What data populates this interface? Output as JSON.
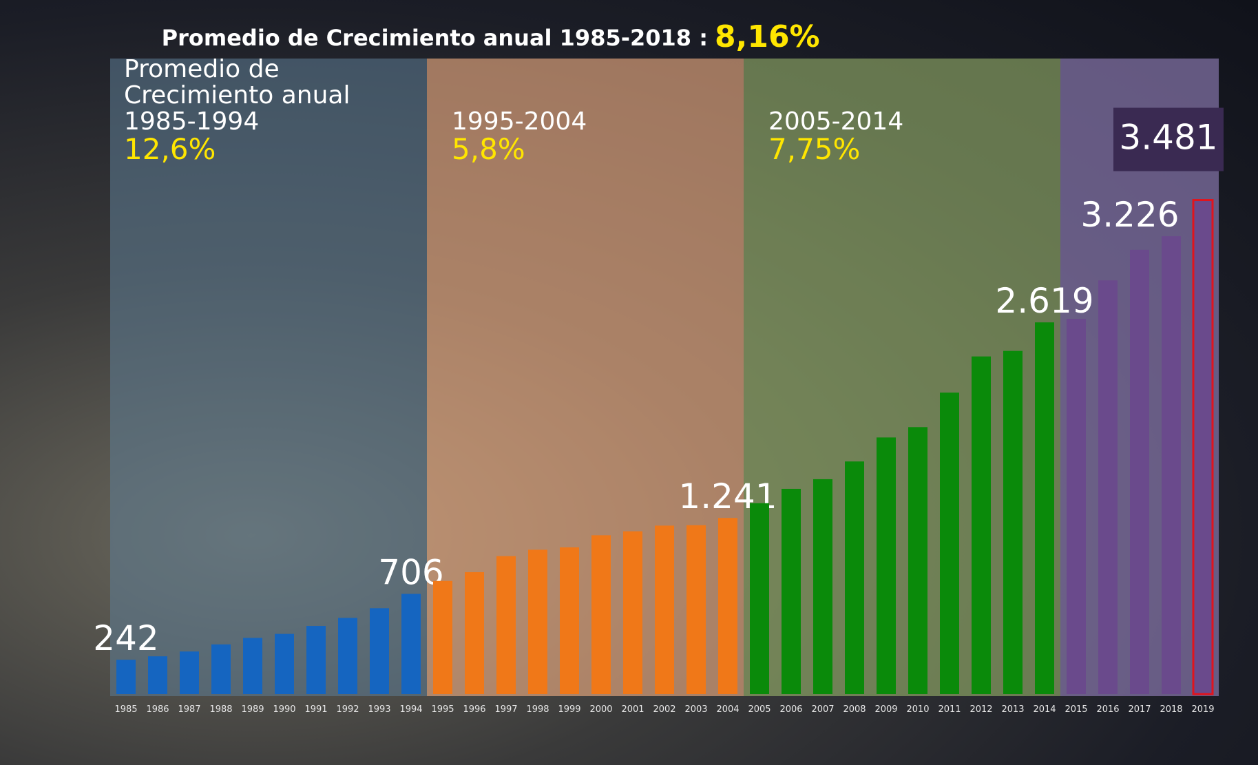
{
  "chart_data": {
    "type": "bar",
    "title": "Promedio de Crecimiento anual 1985-2018 :",
    "title_highlight": "8,16%",
    "categories": [
      "1985",
      "1986",
      "1987",
      "1988",
      "1989",
      "1990",
      "1991",
      "1992",
      "1993",
      "1994",
      "1995",
      "1996",
      "1997",
      "1998",
      "1999",
      "2000",
      "2001",
      "2002",
      "2003",
      "2004",
      "2005",
      "2006",
      "2007",
      "2008",
      "2009",
      "2010",
      "2011",
      "2012",
      "2013",
      "2014",
      "2015",
      "2016",
      "2017",
      "2018",
      "2019"
    ],
    "values": [
      242,
      266,
      300,
      350,
      396,
      424,
      480,
      537,
      605,
      706,
      797,
      859,
      972,
      1017,
      1034,
      1119,
      1147,
      1187,
      1190,
      1241,
      1345,
      1446,
      1514,
      1639,
      1808,
      1881,
      2124,
      2379,
      2418,
      2619,
      2644,
      2915,
      3130,
      3226,
      3481
    ],
    "value_labels": [
      "242",
      null,
      null,
      null,
      null,
      null,
      null,
      null,
      null,
      "706",
      null,
      null,
      null,
      null,
      null,
      null,
      null,
      null,
      null,
      "1.241",
      null,
      null,
      null,
      null,
      null,
      null,
      null,
      null,
      null,
      "2.619",
      null,
      null,
      null,
      "3.226",
      "3.481"
    ],
    "bar_colors": [
      "#1565c0",
      "#1565c0",
      "#1565c0",
      "#1565c0",
      "#1565c0",
      "#1565c0",
      "#1565c0",
      "#1565c0",
      "#1565c0",
      "#1565c0",
      "#f07818",
      "#f07818",
      "#f07818",
      "#f07818",
      "#f07818",
      "#f07818",
      "#f07818",
      "#f07818",
      "#f07818",
      "#f07818",
      "#0a8a0a",
      "#0a8a0a",
      "#0a8a0a",
      "#0a8a0a",
      "#0a8a0a",
      "#0a8a0a",
      "#0a8a0a",
      "#0a8a0a",
      "#0a8a0a",
      "#0a8a0a",
      "#6a4a8c",
      "#6a4a8c",
      "#6a4a8c",
      "#6a4a8c",
      "#6a4a8c"
    ],
    "highlight_outline": "#e0141e",
    "ylim": [
      0,
      3600
    ],
    "periods": [
      {
        "label": "Promedio de Crecimiento anual 1985-1994",
        "rate": "12,6%",
        "color": "#1565c0",
        "band": "rgba(95,125,150,0.55)"
      },
      {
        "label": "1995-2004",
        "rate": "5,8%",
        "color": "#f07818",
        "band": "rgba(240,175,130,0.62)"
      },
      {
        "label": "2005-2014",
        "rate": "7,75%",
        "color": "#0a8a0a",
        "band": "rgba(165,195,115,0.55)"
      },
      {
        "color": "#6a4a8c",
        "band": "rgba(150,130,190,0.62)"
      }
    ]
  }
}
